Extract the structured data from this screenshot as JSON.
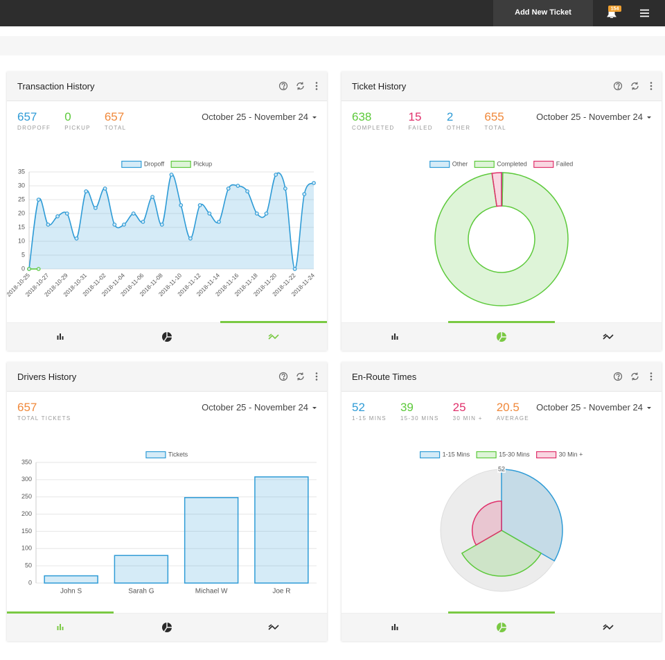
{
  "header": {
    "button": "Add New Ticket",
    "badge": 154
  },
  "panels": [
    {
      "title": "Transaction History",
      "stats": [
        {
          "value": 657,
          "label": "DROPOFF",
          "color": "#2e9bd6"
        },
        {
          "value": 0,
          "label": "PICKUP",
          "color": "#5cc93a"
        },
        {
          "value": 657,
          "label": "TOTAL",
          "color": "#f0883a"
        }
      ],
      "date_range": "October 25 - November 24"
    },
    {
      "title": "Ticket History",
      "stats": [
        {
          "value": 638,
          "label": "COMPLETED",
          "color": "#5cc93a"
        },
        {
          "value": 15,
          "label": "FAILED",
          "color": "#e0306b"
        },
        {
          "value": 2,
          "label": "OTHER",
          "color": "#2e9bd6"
        },
        {
          "value": 655,
          "label": "TOTAL",
          "color": "#f0883a"
        }
      ],
      "date_range": "October 25 - November 24"
    },
    {
      "title": "Drivers History",
      "stats": [
        {
          "value": 657,
          "label": "TOTAL TICKETS",
          "color": "#f0883a"
        }
      ],
      "date_range": "October 25 - November 24"
    },
    {
      "title": "En-Route Times",
      "stats": [
        {
          "value": 52,
          "label": "1-15 MINS",
          "color": "#2e9bd6"
        },
        {
          "value": 39,
          "label": "15-30 MINS",
          "color": "#5cc93a"
        },
        {
          "value": 25,
          "label": "30 MIN +",
          "color": "#e0306b"
        },
        {
          "value": 20.5,
          "label": "AVERAGE",
          "color": "#f0883a"
        }
      ],
      "date_range": "October 25 - November 24"
    }
  ],
  "chart_data": [
    {
      "type": "line",
      "categories": [
        "2018-10-25",
        null,
        "2018-10-27",
        null,
        "2018-10-29",
        null,
        "2018-10-31",
        null,
        "2018-11-02",
        null,
        "2018-11-04",
        null,
        "2018-11-06",
        null,
        "2018-11-08",
        null,
        "2018-11-10",
        null,
        "2018-11-12",
        null,
        "2018-11-14",
        null,
        "2018-11-16",
        null,
        "2018-11-18",
        null,
        "2018-11-20",
        null,
        "2018-11-22",
        null,
        "2018-11-24"
      ],
      "series": [
        {
          "name": "Dropoff",
          "color": "#2e9bd6",
          "values": [
            0,
            25,
            16,
            19,
            20,
            11,
            28,
            22,
            29,
            16,
            16,
            20,
            17,
            26,
            16,
            34,
            23,
            11,
            23,
            20,
            17,
            29,
            30,
            28,
            20,
            20,
            34,
            29,
            0,
            27,
            31
          ]
        },
        {
          "name": "Pickup",
          "color": "#5cc93a",
          "values": [
            0,
            0,
            null,
            null,
            null,
            null,
            null,
            null,
            null,
            null,
            null,
            null,
            null,
            null,
            null,
            null,
            null,
            null,
            null,
            null,
            null,
            null,
            null,
            null,
            null,
            null,
            null,
            null,
            null,
            null,
            null
          ]
        }
      ],
      "ylim": [
        0,
        35
      ],
      "yticks": [
        0,
        5,
        10,
        15,
        20,
        25,
        30,
        35
      ],
      "grid": true
    },
    {
      "type": "doughnut",
      "categories": [
        "Other",
        "Completed",
        "Failed"
      ],
      "values": [
        2,
        638,
        15
      ],
      "colors": [
        "#2e9bd6",
        "#5cc93a",
        "#e0306b"
      ]
    },
    {
      "type": "bar",
      "categories": [
        "John S",
        "Sarah G",
        "Michael W",
        "Joe R"
      ],
      "series": [
        {
          "name": "Tickets",
          "color": "#2e9bd6",
          "values": [
            21,
            80,
            248,
            308
          ]
        }
      ],
      "ylim": [
        0,
        350
      ],
      "yticks": [
        0,
        50,
        100,
        150,
        200,
        250,
        300,
        350
      ],
      "grid": true
    },
    {
      "type": "polarArea",
      "categories": [
        "1-15 Mins",
        "15-30 Mins",
        "30 Min +"
      ],
      "values": [
        52,
        39,
        25
      ],
      "colors": [
        "#2e9bd6",
        "#5cc93a",
        "#e0306b"
      ],
      "rlim": [
        0,
        52
      ],
      "rticks": [
        52
      ]
    }
  ]
}
